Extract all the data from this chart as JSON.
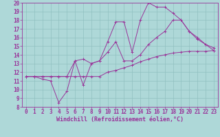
{
  "xlabel": "Windchill (Refroidissement éolien,°C)",
  "background_color": "#aed8d8",
  "line_color": "#993399",
  "grid_color": "#90c0c0",
  "xlim": [
    -0.5,
    23.5
  ],
  "ylim": [
    8,
    20
  ],
  "xticks": [
    0,
    1,
    2,
    3,
    4,
    5,
    6,
    7,
    8,
    9,
    10,
    11,
    12,
    13,
    14,
    15,
    16,
    17,
    18,
    19,
    20,
    21,
    22,
    23
  ],
  "yticks": [
    8,
    9,
    10,
    11,
    12,
    13,
    14,
    15,
    16,
    17,
    18,
    19,
    20
  ],
  "line1_x": [
    0,
    1,
    2,
    3,
    4,
    5,
    6,
    7,
    8,
    9,
    10,
    11,
    12,
    13,
    14,
    15,
    16,
    17,
    18,
    19,
    20,
    21,
    22,
    23
  ],
  "line1_y": [
    11.5,
    11.5,
    11.5,
    11.5,
    11.5,
    11.5,
    11.5,
    11.5,
    11.5,
    11.5,
    12.0,
    12.2,
    12.5,
    12.8,
    13.2,
    13.5,
    13.8,
    14.0,
    14.2,
    14.3,
    14.4,
    14.4,
    14.4,
    14.5
  ],
  "line2_x": [
    0,
    1,
    2,
    3,
    4,
    5,
    6,
    7,
    8,
    9,
    10,
    11,
    12,
    13,
    14,
    15,
    16,
    17,
    18,
    19,
    20,
    21,
    22,
    23
  ],
  "line2_y": [
    11.5,
    11.5,
    11.2,
    11.0,
    8.5,
    9.8,
    13.3,
    10.5,
    13.0,
    13.3,
    15.5,
    17.8,
    17.8,
    14.3,
    18.0,
    20.0,
    19.5,
    19.5,
    18.8,
    18.0,
    16.7,
    16.0,
    15.2,
    14.8
  ],
  "line3_x": [
    0,
    1,
    2,
    3,
    4,
    5,
    6,
    7,
    8,
    9,
    10,
    11,
    12,
    13,
    14,
    15,
    16,
    17,
    18,
    19,
    20,
    21,
    22,
    23
  ],
  "line3_y": [
    11.5,
    11.5,
    11.5,
    11.5,
    11.5,
    11.5,
    13.3,
    13.5,
    13.0,
    13.3,
    14.3,
    15.5,
    13.3,
    13.3,
    14.0,
    15.2,
    16.0,
    16.7,
    18.0,
    18.0,
    16.7,
    15.8,
    15.2,
    14.5
  ],
  "tick_fontsize": 5.5,
  "xlabel_fontsize": 6.0
}
